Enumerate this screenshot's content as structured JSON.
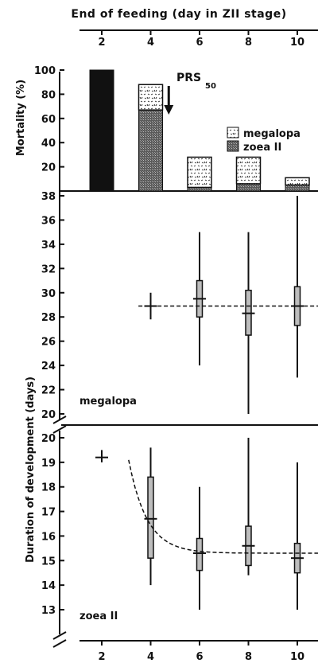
{
  "chart_data": [
    {
      "type": "bar",
      "stacked": true,
      "title": "End of feeding (day in ZII stage)",
      "ylabel": "Mortality (%)",
      "categories": [
        "2",
        "4",
        "6",
        "8",
        "10"
      ],
      "ylim": [
        0,
        100
      ],
      "yticks": [
        20,
        40,
        60,
        80,
        100
      ],
      "series": [
        {
          "name": "zoea II",
          "values": [
            100,
            67,
            3,
            6,
            5
          ]
        },
        {
          "name": "megalopa",
          "values": [
            0,
            21,
            25,
            22,
            6
          ]
        }
      ],
      "annotation": {
        "text": "PRS",
        "sub": "50",
        "x": 5
      },
      "legend_placement": "right",
      "colors": {
        "zoea": "#1a1a1a",
        "megalopa": "#d6d6d6"
      }
    },
    {
      "type": "scatter",
      "panel_label": "megalopa",
      "x": [
        4,
        6,
        8,
        10
      ],
      "mean": [
        28.9,
        29.5,
        28.3,
        28.9
      ],
      "box_low": [
        null,
        28.0,
        26.5,
        27.3
      ],
      "box_high": [
        null,
        31.0,
        30.2,
        30.5
      ],
      "whisker_low": [
        27.8,
        24.0,
        20.0,
        23.0
      ],
      "whisker_high": [
        30.0,
        35.0,
        35.0,
        38.0
      ],
      "trend": {
        "style": "dashed",
        "value": 28.9,
        "x_from": 3.5,
        "x_to": 11
      },
      "ylim": [
        19.5,
        38
      ],
      "yticks": [
        20,
        22,
        24,
        26,
        28,
        30,
        32,
        34,
        36,
        38
      ]
    },
    {
      "type": "scatter",
      "panel_label": "zoea II",
      "x": [
        2,
        4,
        6,
        8,
        10
      ],
      "mean": [
        19.2,
        16.7,
        15.3,
        15.6,
        15.1
      ],
      "box_low": [
        null,
        15.1,
        14.6,
        14.8,
        14.5
      ],
      "box_high": [
        null,
        18.4,
        15.9,
        16.4,
        15.7
      ],
      "whisker_low": [
        19.0,
        14.0,
        13.0,
        14.4,
        13.0
      ],
      "whisker_high": [
        19.5,
        19.6,
        18.0,
        20.0,
        19.0
      ],
      "trend": {
        "style": "dashed",
        "shape": "decay",
        "asymptote": 15.3
      },
      "ylim": [
        12.5,
        20.5
      ],
      "yticks": [
        13,
        14,
        15,
        16,
        17,
        18,
        19,
        20
      ]
    }
  ],
  "shared_ylabel": "Duration of development (days)",
  "xticks": [
    "2",
    "4",
    "6",
    "8",
    "10"
  ]
}
